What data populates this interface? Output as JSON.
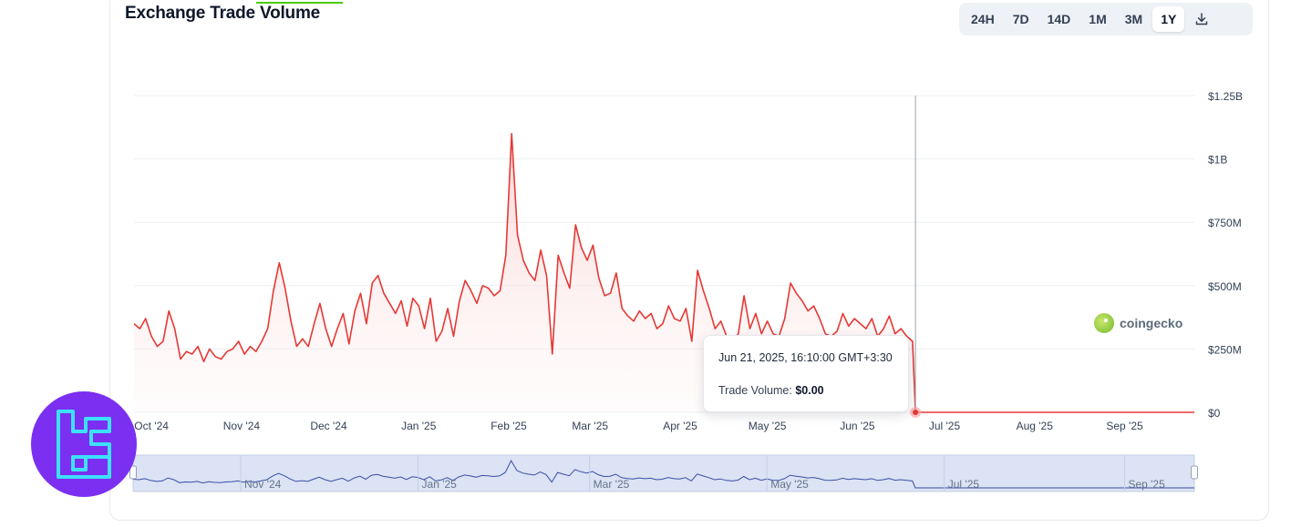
{
  "header": {
    "title": "Exchange Trade Volume"
  },
  "range_selector": {
    "buttons": [
      "24H",
      "7D",
      "14D",
      "1M",
      "3M",
      "1Y"
    ],
    "active": "1Y",
    "download_icon": "download-icon"
  },
  "watermark": {
    "text": "coingecko",
    "icon": "coingecko-logo-icon"
  },
  "tooltip": {
    "date": "Jun 21, 2025, 16:10:00 GMT+3:30",
    "label": "Trade Volume:",
    "value": "$0.00"
  },
  "navigator": {
    "labels": [
      "Nov '24",
      "Jan '25",
      "Mar '25",
      "May '25",
      "Jul '25",
      "Sep '25"
    ]
  },
  "colors": {
    "line": "#e53935",
    "area_top": "#fbd5d5",
    "navigator_line": "#3b4ea6",
    "navigator_fill": "#dbe3f4",
    "badge": "#7b2ff0",
    "badge_glyph": "#3de0ff"
  },
  "chart_data": {
    "type": "area",
    "title": "Exchange Trade Volume",
    "ylabel": "",
    "xlabel": "",
    "y_ticks": [
      "$0",
      "$250M",
      "$500M",
      "$750M",
      "$1B",
      "$1.25B"
    ],
    "y_tick_values": [
      0,
      250000000,
      500000000,
      750000000,
      1000000000,
      1250000000
    ],
    "ylim": [
      0,
      1250000000
    ],
    "x_ticks": [
      "Oct '24",
      "Nov '24",
      "Dec '24",
      "Jan '25",
      "Feb '25",
      "Mar '25",
      "Apr '25",
      "May '25",
      "Jun '25",
      "Jul '25",
      "Aug '25",
      "Sep '25"
    ],
    "x_tick_dates": [
      "2024-10-01",
      "2024-11-01",
      "2024-12-01",
      "2025-01-01",
      "2025-02-01",
      "2025-03-01",
      "2025-04-01",
      "2025-05-01",
      "2025-06-01",
      "2025-07-01",
      "2025-08-01",
      "2025-09-01"
    ],
    "xlim": [
      "2024-09-25",
      "2025-09-25"
    ],
    "grid": "horizontal",
    "legend": "none",
    "series": [
      {
        "values": [
          [
            "2024-09-25",
            350000000
          ],
          [
            "2024-09-27",
            330000000
          ],
          [
            "2024-09-29",
            370000000
          ],
          [
            "2024-10-01",
            300000000
          ],
          [
            "2024-10-03",
            260000000
          ],
          [
            "2024-10-05",
            280000000
          ],
          [
            "2024-10-07",
            400000000
          ],
          [
            "2024-10-09",
            330000000
          ],
          [
            "2024-10-11",
            210000000
          ],
          [
            "2024-10-13",
            240000000
          ],
          [
            "2024-10-15",
            230000000
          ],
          [
            "2024-10-17",
            260000000
          ],
          [
            "2024-10-19",
            200000000
          ],
          [
            "2024-10-21",
            250000000
          ],
          [
            "2024-10-23",
            220000000
          ],
          [
            "2024-10-25",
            210000000
          ],
          [
            "2024-10-27",
            240000000
          ],
          [
            "2024-10-29",
            250000000
          ],
          [
            "2024-10-31",
            280000000
          ],
          [
            "2024-11-02",
            230000000
          ],
          [
            "2024-11-04",
            260000000
          ],
          [
            "2024-11-06",
            240000000
          ],
          [
            "2024-11-08",
            280000000
          ],
          [
            "2024-11-10",
            330000000
          ],
          [
            "2024-11-12",
            480000000
          ],
          [
            "2024-11-14",
            590000000
          ],
          [
            "2024-11-16",
            490000000
          ],
          [
            "2024-11-18",
            360000000
          ],
          [
            "2024-11-20",
            260000000
          ],
          [
            "2024-11-22",
            290000000
          ],
          [
            "2024-11-24",
            260000000
          ],
          [
            "2024-11-26",
            350000000
          ],
          [
            "2024-11-28",
            430000000
          ],
          [
            "2024-11-30",
            330000000
          ],
          [
            "2024-12-02",
            260000000
          ],
          [
            "2024-12-04",
            330000000
          ],
          [
            "2024-12-06",
            390000000
          ],
          [
            "2024-12-08",
            270000000
          ],
          [
            "2024-12-10",
            400000000
          ],
          [
            "2024-12-12",
            470000000
          ],
          [
            "2024-12-14",
            350000000
          ],
          [
            "2024-12-16",
            510000000
          ],
          [
            "2024-12-18",
            540000000
          ],
          [
            "2024-12-20",
            470000000
          ],
          [
            "2024-12-22",
            430000000
          ],
          [
            "2024-12-24",
            390000000
          ],
          [
            "2024-12-26",
            440000000
          ],
          [
            "2024-12-28",
            340000000
          ],
          [
            "2024-12-30",
            450000000
          ],
          [
            "2025-01-01",
            420000000
          ],
          [
            "2025-01-03",
            330000000
          ],
          [
            "2025-01-05",
            450000000
          ],
          [
            "2025-01-07",
            280000000
          ],
          [
            "2025-01-09",
            320000000
          ],
          [
            "2025-01-11",
            410000000
          ],
          [
            "2025-01-13",
            300000000
          ],
          [
            "2025-01-15",
            440000000
          ],
          [
            "2025-01-17",
            520000000
          ],
          [
            "2025-01-19",
            480000000
          ],
          [
            "2025-01-21",
            430000000
          ],
          [
            "2025-01-23",
            500000000
          ],
          [
            "2025-01-25",
            490000000
          ],
          [
            "2025-01-27",
            460000000
          ],
          [
            "2025-01-29",
            480000000
          ],
          [
            "2025-01-31",
            620000000
          ],
          [
            "2025-02-02",
            1100000000
          ],
          [
            "2025-02-04",
            700000000
          ],
          [
            "2025-02-06",
            600000000
          ],
          [
            "2025-02-08",
            550000000
          ],
          [
            "2025-02-10",
            520000000
          ],
          [
            "2025-02-12",
            640000000
          ],
          [
            "2025-02-14",
            540000000
          ],
          [
            "2025-02-16",
            230000000
          ],
          [
            "2025-02-18",
            620000000
          ],
          [
            "2025-02-20",
            550000000
          ],
          [
            "2025-02-22",
            490000000
          ],
          [
            "2025-02-24",
            740000000
          ],
          [
            "2025-02-26",
            650000000
          ],
          [
            "2025-02-28",
            600000000
          ],
          [
            "2025-03-02",
            660000000
          ],
          [
            "2025-03-04",
            530000000
          ],
          [
            "2025-03-06",
            460000000
          ],
          [
            "2025-03-08",
            470000000
          ],
          [
            "2025-03-10",
            550000000
          ],
          [
            "2025-03-12",
            410000000
          ],
          [
            "2025-03-14",
            380000000
          ],
          [
            "2025-03-16",
            360000000
          ],
          [
            "2025-03-18",
            400000000
          ],
          [
            "2025-03-20",
            370000000
          ],
          [
            "2025-03-22",
            390000000
          ],
          [
            "2025-03-24",
            330000000
          ],
          [
            "2025-03-26",
            350000000
          ],
          [
            "2025-03-28",
            420000000
          ],
          [
            "2025-03-30",
            370000000
          ],
          [
            "2025-04-01",
            360000000
          ],
          [
            "2025-04-03",
            410000000
          ],
          [
            "2025-04-05",
            280000000
          ],
          [
            "2025-04-07",
            560000000
          ],
          [
            "2025-04-09",
            480000000
          ],
          [
            "2025-04-11",
            410000000
          ],
          [
            "2025-04-13",
            330000000
          ],
          [
            "2025-04-15",
            360000000
          ],
          [
            "2025-04-17",
            300000000
          ],
          [
            "2025-04-19",
            280000000
          ],
          [
            "2025-04-21",
            310000000
          ],
          [
            "2025-04-23",
            460000000
          ],
          [
            "2025-04-25",
            330000000
          ],
          [
            "2025-04-27",
            390000000
          ],
          [
            "2025-04-29",
            310000000
          ],
          [
            "2025-05-01",
            360000000
          ],
          [
            "2025-05-03",
            310000000
          ],
          [
            "2025-05-05",
            300000000
          ],
          [
            "2025-05-07",
            370000000
          ],
          [
            "2025-05-09",
            510000000
          ],
          [
            "2025-05-11",
            470000000
          ],
          [
            "2025-05-13",
            440000000
          ],
          [
            "2025-05-15",
            400000000
          ],
          [
            "2025-05-17",
            420000000
          ],
          [
            "2025-05-19",
            370000000
          ],
          [
            "2025-05-21",
            310000000
          ],
          [
            "2025-05-23",
            300000000
          ],
          [
            "2025-05-25",
            320000000
          ],
          [
            "2025-05-27",
            390000000
          ],
          [
            "2025-05-29",
            340000000
          ],
          [
            "2025-05-31",
            370000000
          ],
          [
            "2025-06-02",
            350000000
          ],
          [
            "2025-06-04",
            330000000
          ],
          [
            "2025-06-06",
            370000000
          ],
          [
            "2025-06-08",
            300000000
          ],
          [
            "2025-06-10",
            330000000
          ],
          [
            "2025-06-12",
            380000000
          ],
          [
            "2025-06-14",
            310000000
          ],
          [
            "2025-06-16",
            330000000
          ],
          [
            "2025-06-18",
            300000000
          ],
          [
            "2025-06-20",
            280000000
          ],
          [
            "2025-06-21",
            0
          ],
          [
            "2025-06-25",
            0
          ],
          [
            "2025-07-15",
            0
          ],
          [
            "2025-08-15",
            0
          ],
          [
            "2025-09-15",
            0
          ],
          [
            "2025-09-25",
            0
          ]
        ]
      }
    ],
    "highlighted_point": {
      "x": "2025-06-21",
      "y": 0
    }
  }
}
